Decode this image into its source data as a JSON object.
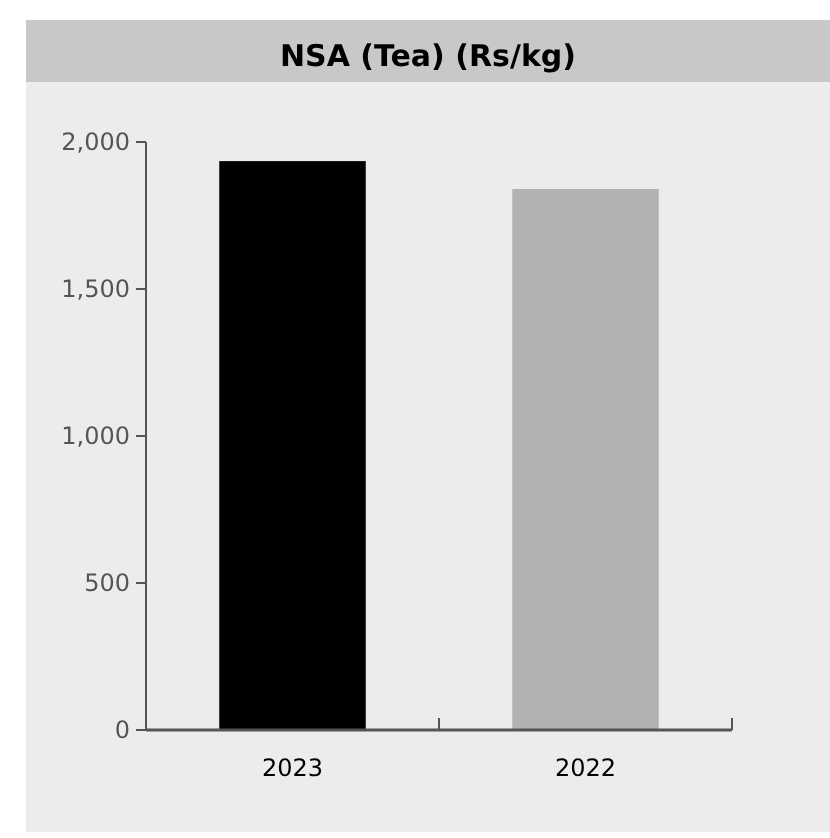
{
  "chart_data": {
    "type": "bar",
    "title": "NSA (Tea) (Rs/kg)",
    "categories": [
      "2023",
      "2022"
    ],
    "values": [
      1935,
      1840
    ],
    "colors": [
      "#000000",
      "#b2b2b2"
    ],
    "ylim": [
      0,
      2000
    ],
    "yticks": [
      0,
      {
        "value": 500,
        "label": "500"
      },
      {
        "value": 1000,
        "label": "1,000"
      },
      {
        "value": 1500,
        "label": "1,500"
      },
      {
        "value": 2000,
        "label": "2,000"
      }
    ],
    "grid": false
  }
}
